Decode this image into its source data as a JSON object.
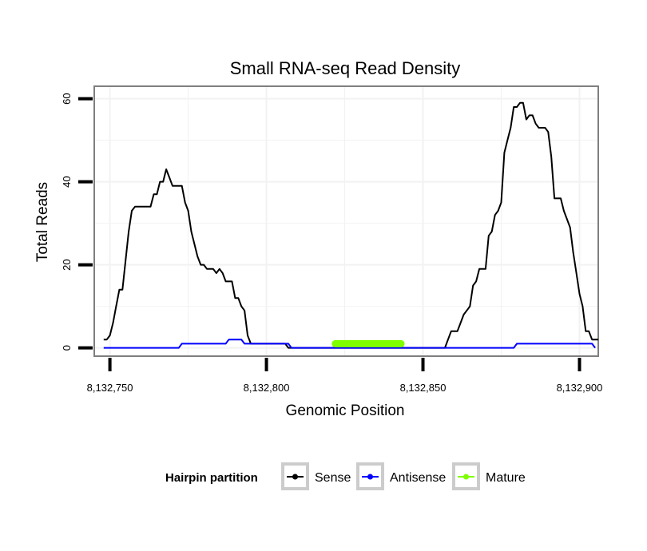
{
  "chart_data": {
    "type": "line",
    "title": "Small RNA-seq Read Density",
    "xlabel": "Genomic Position",
    "ylabel": "Total Reads",
    "xlim": [
      8132745,
      8132906
    ],
    "ylim": [
      -2,
      63
    ],
    "x_ticks": [
      8132750,
      8132800,
      8132850,
      8132900
    ],
    "x_tick_labels": [
      "8,132,750",
      "8,132,800",
      "8,132,850",
      "8,132,900"
    ],
    "y_ticks": [
      0,
      20,
      40,
      60
    ],
    "y_tick_labels": [
      "0",
      "20",
      "40",
      "60"
    ],
    "grid": true,
    "legend_title": "Hairpin partition",
    "legend_position": "bottom",
    "series": [
      {
        "name": "Sense",
        "color": "#000000",
        "points": [
          [
            8132748,
            2
          ],
          [
            8132749,
            2
          ],
          [
            8132750,
            3
          ],
          [
            8132751,
            6
          ],
          [
            8132752,
            10
          ],
          [
            8132753,
            14
          ],
          [
            8132754,
            14
          ],
          [
            8132755,
            21
          ],
          [
            8132756,
            28
          ],
          [
            8132757,
            33
          ],
          [
            8132758,
            34
          ],
          [
            8132763,
            34
          ],
          [
            8132764,
            37
          ],
          [
            8132765,
            37
          ],
          [
            8132766,
            40
          ],
          [
            8132767,
            40
          ],
          [
            8132768,
            43
          ],
          [
            8132769,
            41
          ],
          [
            8132770,
            39
          ],
          [
            8132773,
            39
          ],
          [
            8132774,
            35
          ],
          [
            8132775,
            33
          ],
          [
            8132776,
            28
          ],
          [
            8132777,
            25
          ],
          [
            8132778,
            22
          ],
          [
            8132779,
            20
          ],
          [
            8132780,
            20
          ],
          [
            8132781,
            19
          ],
          [
            8132783,
            19
          ],
          [
            8132784,
            18
          ],
          [
            8132785,
            19
          ],
          [
            8132786,
            18
          ],
          [
            8132787,
            16
          ],
          [
            8132789,
            16
          ],
          [
            8132790,
            12
          ],
          [
            8132791,
            12
          ],
          [
            8132792,
            10
          ],
          [
            8132793,
            9
          ],
          [
            8132794,
            3
          ],
          [
            8132795,
            1
          ],
          [
            8132806,
            1
          ],
          [
            8132807,
            0
          ],
          [
            8132857,
            0
          ],
          [
            8132858,
            2
          ],
          [
            8132859,
            4
          ],
          [
            8132861,
            4
          ],
          [
            8132862,
            6
          ],
          [
            8132863,
            8
          ],
          [
            8132864,
            9
          ],
          [
            8132865,
            10
          ],
          [
            8132866,
            15
          ],
          [
            8132867,
            16
          ],
          [
            8132868,
            19
          ],
          [
            8132870,
            19
          ],
          [
            8132871,
            27
          ],
          [
            8132872,
            28
          ],
          [
            8132873,
            32
          ],
          [
            8132874,
            33
          ],
          [
            8132875,
            35
          ],
          [
            8132876,
            47
          ],
          [
            8132877,
            50
          ],
          [
            8132878,
            53
          ],
          [
            8132879,
            58
          ],
          [
            8132880,
            58
          ],
          [
            8132881,
            59
          ],
          [
            8132882,
            59
          ],
          [
            8132883,
            55
          ],
          [
            8132884,
            56
          ],
          [
            8132885,
            56
          ],
          [
            8132886,
            54
          ],
          [
            8132887,
            53
          ],
          [
            8132889,
            53
          ],
          [
            8132890,
            52
          ],
          [
            8132891,
            46
          ],
          [
            8132892,
            36
          ],
          [
            8132894,
            36
          ],
          [
            8132895,
            33
          ],
          [
            8132896,
            31
          ],
          [
            8132897,
            29
          ],
          [
            8132898,
            23
          ],
          [
            8132899,
            18
          ],
          [
            8132900,
            13
          ],
          [
            8132901,
            10
          ],
          [
            8132902,
            4
          ],
          [
            8132903,
            4
          ],
          [
            8132904,
            2
          ],
          [
            8132906,
            2
          ]
        ]
      },
      {
        "name": "Antisense",
        "color": "#0000ff",
        "points": [
          [
            8132748,
            0
          ],
          [
            8132772,
            0
          ],
          [
            8132773,
            1
          ],
          [
            8132787,
            1
          ],
          [
            8132788,
            2
          ],
          [
            8132792,
            2
          ],
          [
            8132793,
            1
          ],
          [
            8132807,
            1
          ],
          [
            8132808,
            0
          ],
          [
            8132879,
            0
          ],
          [
            8132880,
            1
          ],
          [
            8132904,
            1
          ],
          [
            8132905,
            0
          ]
        ]
      },
      {
        "name": "Mature",
        "color": "#7fff00",
        "points": [
          [
            8132822,
            1
          ],
          [
            8132843,
            1
          ]
        ]
      }
    ]
  }
}
